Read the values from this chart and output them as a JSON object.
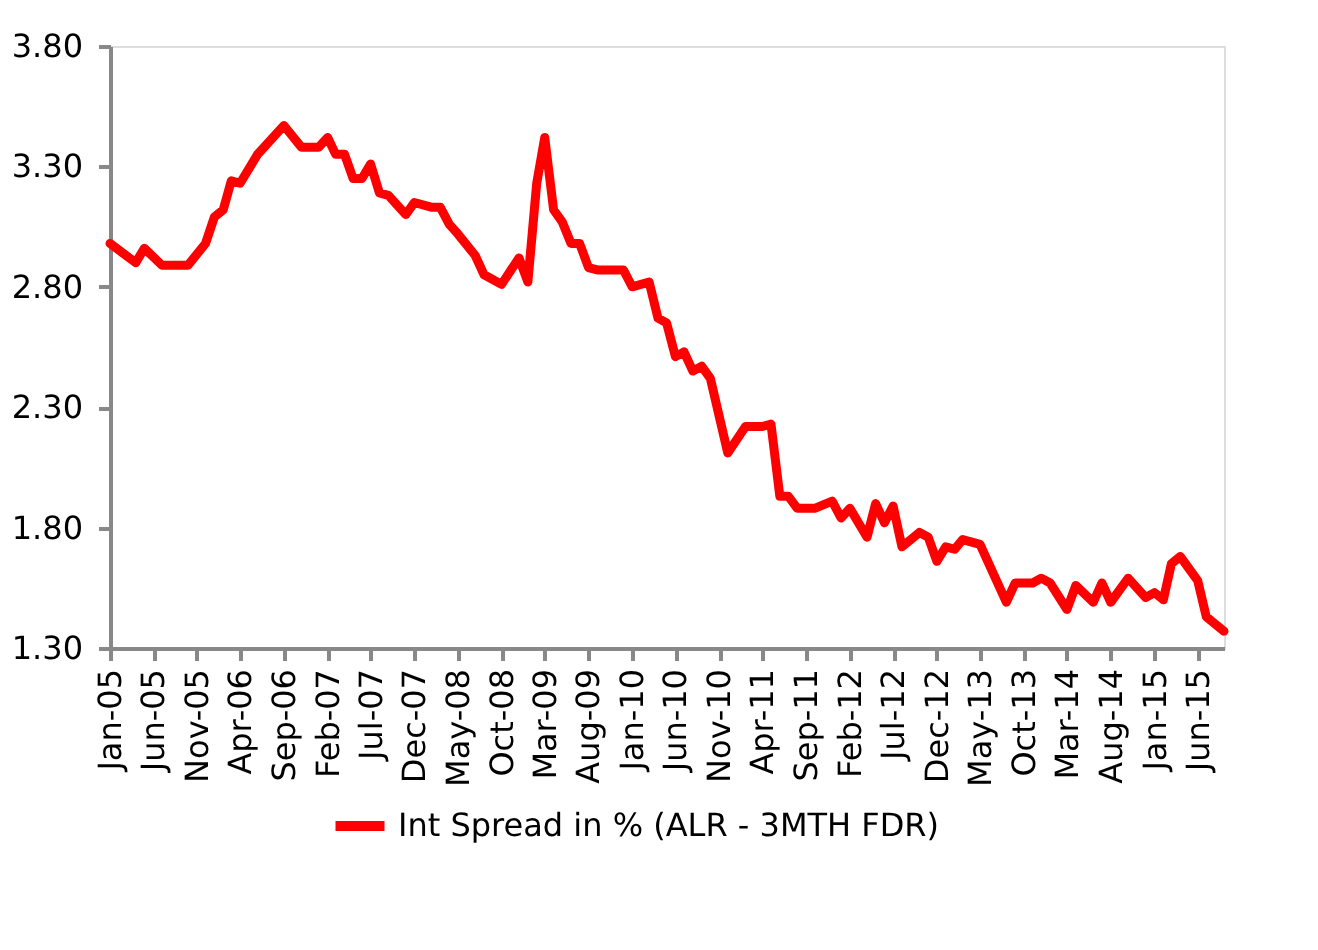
{
  "chart_data": {
    "type": "line",
    "legend": "bottom",
    "grid": false,
    "marker": "none",
    "line_style": "solid",
    "ylim": [
      1.3,
      3.8
    ],
    "yticks": [
      {
        "value": 1.3,
        "label": "1.30"
      },
      {
        "value": 1.8,
        "label": "1.80"
      },
      {
        "value": 2.3,
        "label": "2.30"
      },
      {
        "value": 2.8,
        "label": "2.80"
      },
      {
        "value": 3.3,
        "label": "3.30"
      },
      {
        "value": 3.8,
        "label": "3.80"
      }
    ],
    "xlim": [
      "2005-01",
      "2015-09"
    ],
    "xticks": [
      {
        "value": "2005-01",
        "label": "Jan-05"
      },
      {
        "value": "2005-06",
        "label": "Jun-05"
      },
      {
        "value": "2005-11",
        "label": "Nov-05"
      },
      {
        "value": "2006-04",
        "label": "Apr-06"
      },
      {
        "value": "2006-09",
        "label": "Sep-06"
      },
      {
        "value": "2007-02",
        "label": "Feb-07"
      },
      {
        "value": "2007-07",
        "label": "Jul-07"
      },
      {
        "value": "2007-12",
        "label": "Dec-07"
      },
      {
        "value": "2008-05",
        "label": "May-08"
      },
      {
        "value": "2008-10",
        "label": "Oct-08"
      },
      {
        "value": "2009-03",
        "label": "Mar-09"
      },
      {
        "value": "2009-08",
        "label": "Aug-09"
      },
      {
        "value": "2010-01",
        "label": "Jan-10"
      },
      {
        "value": "2010-06",
        "label": "Jun-10"
      },
      {
        "value": "2010-11",
        "label": "Nov-10"
      },
      {
        "value": "2011-04",
        "label": "Apr-11"
      },
      {
        "value": "2011-09",
        "label": "Sep-11"
      },
      {
        "value": "2012-02",
        "label": "Feb-12"
      },
      {
        "value": "2012-07",
        "label": "Jul-12"
      },
      {
        "value": "2012-12",
        "label": "Dec-12"
      },
      {
        "value": "2013-05",
        "label": "May-13"
      },
      {
        "value": "2013-10",
        "label": "Oct-13"
      },
      {
        "value": "2014-03",
        "label": "Mar-14"
      },
      {
        "value": "2014-08",
        "label": "Aug-14"
      },
      {
        "value": "2015-01",
        "label": "Jan-15"
      },
      {
        "value": "2015-06",
        "label": "Jun-15"
      }
    ],
    "x": [
      "2005-01",
      "2005-04",
      "2005-05",
      "2005-07",
      "2005-10",
      "2005-12",
      "2006-01",
      "2006-02",
      "2006-03",
      "2006-04",
      "2006-06",
      "2006-09",
      "2006-11",
      "2007-01",
      "2007-02",
      "2007-03",
      "2007-04",
      "2007-05",
      "2007-06",
      "2007-07",
      "2007-08",
      "2007-09",
      "2007-11",
      "2007-12",
      "2008-02",
      "2008-03",
      "2008-04",
      "2008-05",
      "2008-07",
      "2008-08",
      "2008-10",
      "2008-12",
      "2009-01",
      "2009-02",
      "2009-03",
      "2009-04",
      "2009-05",
      "2009-06",
      "2009-07",
      "2009-08",
      "2009-09",
      "2009-12",
      "2010-01",
      "2010-03",
      "2010-04",
      "2010-05",
      "2010-06",
      "2010-07",
      "2010-08",
      "2010-09",
      "2010-10",
      "2010-12",
      "2011-02",
      "2011-04",
      "2011-05",
      "2011-06",
      "2011-07",
      "2011-08",
      "2011-10",
      "2011-12",
      "2012-01",
      "2012-02",
      "2012-04",
      "2012-05",
      "2012-06",
      "2012-07",
      "2012-08",
      "2012-10",
      "2012-11",
      "2012-12",
      "2013-01",
      "2013-02",
      "2013-03",
      "2013-05",
      "2013-08",
      "2013-09",
      "2013-11",
      "2013-12",
      "2014-01",
      "2014-03",
      "2014-04",
      "2014-06",
      "2014-07",
      "2014-08",
      "2014-10",
      "2014-12",
      "2015-01",
      "2015-02",
      "2015-03",
      "2015-04",
      "2015-06",
      "2015-07",
      "2015-09"
    ],
    "series": [
      {
        "name": "Int Spread in % (ALR - 3MTH FDR)",
        "color": "#ff0000",
        "values": [
          2.98,
          2.9,
          2.96,
          2.89,
          2.89,
          2.98,
          3.09,
          3.12,
          3.24,
          3.23,
          3.35,
          3.47,
          3.38,
          3.38,
          3.42,
          3.35,
          3.35,
          3.25,
          3.25,
          3.31,
          3.19,
          3.18,
          3.1,
          3.15,
          3.13,
          3.13,
          3.06,
          3.02,
          2.93,
          2.85,
          2.81,
          2.92,
          2.82,
          3.23,
          3.42,
          3.12,
          3.07,
          2.98,
          2.98,
          2.88,
          2.87,
          2.87,
          2.8,
          2.82,
          2.67,
          2.65,
          2.51,
          2.53,
          2.45,
          2.47,
          2.42,
          2.11,
          2.22,
          2.22,
          2.23,
          1.93,
          1.93,
          1.88,
          1.88,
          1.91,
          1.84,
          1.88,
          1.76,
          1.9,
          1.82,
          1.89,
          1.72,
          1.78,
          1.76,
          1.66,
          1.72,
          1.71,
          1.75,
          1.73,
          1.49,
          1.57,
          1.57,
          1.59,
          1.57,
          1.46,
          1.56,
          1.49,
          1.57,
          1.49,
          1.59,
          1.51,
          1.53,
          1.5,
          1.65,
          1.68,
          1.58,
          1.43,
          1.37
        ]
      }
    ]
  }
}
